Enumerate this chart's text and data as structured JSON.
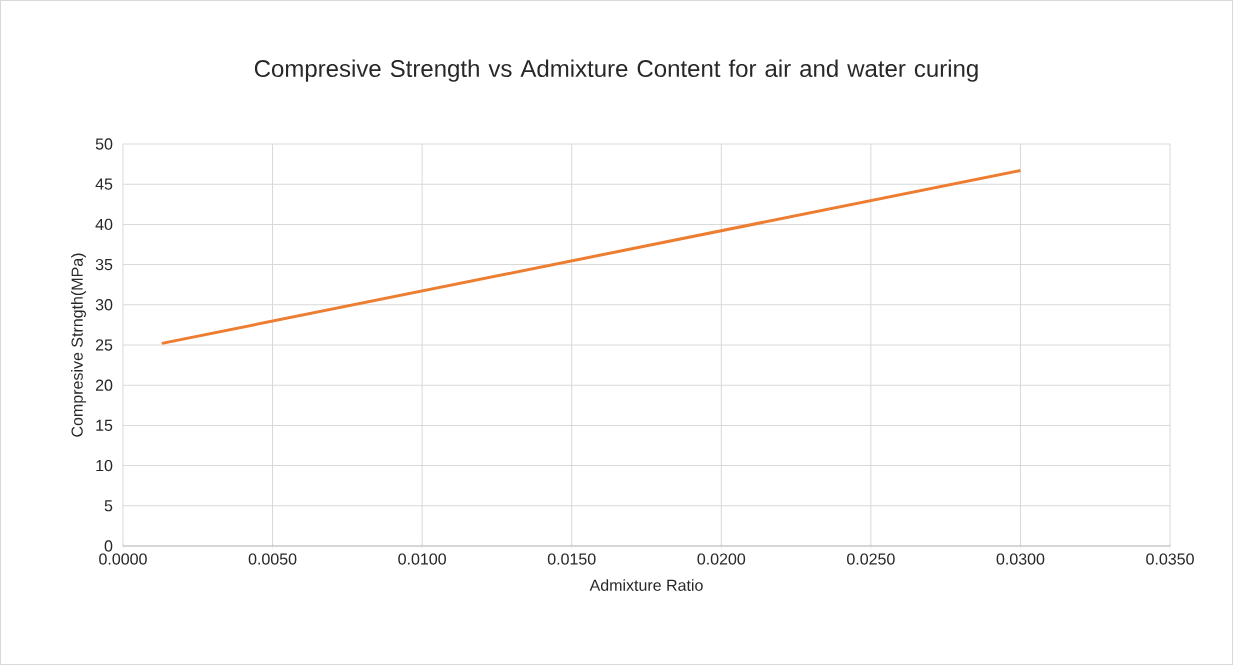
{
  "chart_data": {
    "type": "line",
    "title": "Compresive Strength vs Admixture Content for air and water curing",
    "xlabel": "Admixture Ratio",
    "ylabel": "Compresive Strngth(MPa)",
    "x": [
      0.0013,
      0.03
    ],
    "series": [
      {
        "color": "#ed7d31",
        "values": [
          25.2,
          46.7
        ]
      }
    ],
    "xlim": [
      0,
      0.035
    ],
    "xticks": [
      {
        "value": 0,
        "label": "0.0000"
      },
      {
        "value": 0.005,
        "label": "0.0050"
      },
      {
        "value": 0.01,
        "label": "0.0100"
      },
      {
        "value": 0.015,
        "label": "0.0150"
      },
      {
        "value": 0.02,
        "label": "0.0200"
      },
      {
        "value": 0.025,
        "label": "0.0250"
      },
      {
        "value": 0.03,
        "label": "0.0300"
      },
      {
        "value": 0.035,
        "label": "0.0350"
      }
    ],
    "ylim": [
      0,
      50
    ],
    "yticks": [
      0,
      5,
      10,
      15,
      20,
      25,
      30,
      35,
      40,
      45,
      50
    ],
    "grid": true,
    "marker": "none",
    "line_style": "solid"
  }
}
